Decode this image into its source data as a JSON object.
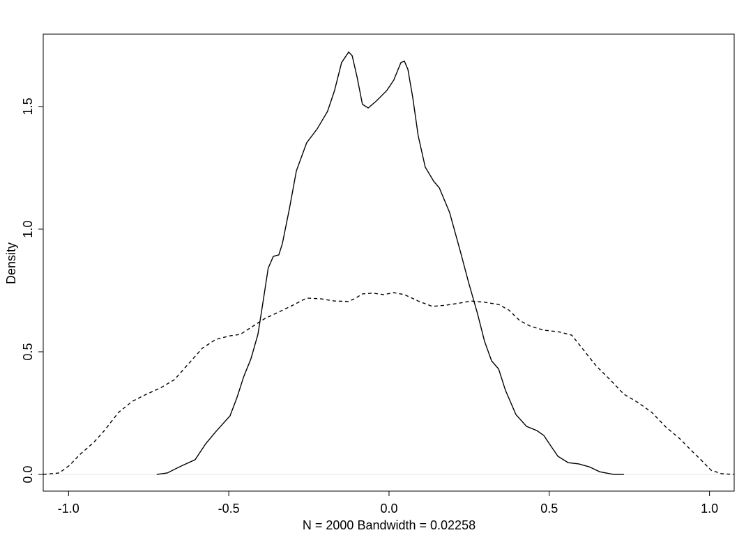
{
  "chart_data": {
    "type": "line",
    "xlabel": "N = 2000   Bandwidth = 0.02258",
    "ylabel": "Density",
    "xlim": [
      -1.079,
      1.077
    ],
    "ylim": [
      -0.068,
      1.795
    ],
    "xticks": [
      {
        "value": -1,
        "label": "-1.0"
      },
      -0.5,
      {
        "value": 0,
        "label": "0.0"
      },
      0.5,
      {
        "value": 1,
        "label": "1.0"
      }
    ],
    "yticks": [
      {
        "value": 0,
        "label": "0.0"
      },
      0.5,
      {
        "value": 1,
        "label": "1.0"
      },
      1.5
    ],
    "grid": false,
    "zero_line": true,
    "series": [
      {
        "color": "#000000",
        "dash": "solid",
        "x": [
          -0.725,
          -0.692,
          -0.649,
          -0.605,
          -0.572,
          -0.54,
          -0.496,
          -0.474,
          -0.453,
          -0.431,
          -0.409,
          -0.392,
          -0.377,
          -0.361,
          -0.344,
          -0.333,
          -0.311,
          -0.289,
          -0.257,
          -0.224,
          -0.192,
          -0.17,
          -0.148,
          -0.126,
          -0.115,
          -0.1,
          -0.083,
          -0.065,
          -0.039,
          -0.007,
          0.015,
          0.037,
          0.048,
          0.059,
          0.074,
          0.091,
          0.113,
          0.139,
          0.157,
          0.189,
          0.222,
          0.248,
          0.276,
          0.298,
          0.32,
          0.342,
          0.363,
          0.396,
          0.429,
          0.461,
          0.483,
          0.505,
          0.527,
          0.559,
          0.592,
          0.625,
          0.657,
          0.701,
          0.733
        ],
        "values": [
          0,
          0.006,
          0.034,
          0.06,
          0.125,
          0.175,
          0.239,
          0.315,
          0.4,
          0.471,
          0.571,
          0.713,
          0.841,
          0.889,
          0.895,
          0.94,
          1.082,
          1.238,
          1.352,
          1.409,
          1.48,
          1.565,
          1.679,
          1.722,
          1.707,
          1.622,
          1.509,
          1.494,
          1.523,
          1.565,
          1.608,
          1.679,
          1.685,
          1.651,
          1.537,
          1.381,
          1.253,
          1.196,
          1.168,
          1.068,
          0.912,
          0.784,
          0.656,
          0.543,
          0.463,
          0.43,
          0.344,
          0.244,
          0.196,
          0.179,
          0.159,
          0.116,
          0.074,
          0.048,
          0.043,
          0.031,
          0.011,
          0,
          0
        ]
      },
      {
        "color": "#000000",
        "dash": "dashed",
        "x": [
          -1.079,
          -1.029,
          -0.997,
          -0.964,
          -0.921,
          -0.888,
          -0.844,
          -0.801,
          -0.757,
          -0.714,
          -0.67,
          -0.627,
          -0.583,
          -0.54,
          -0.496,
          -0.464,
          -0.431,
          -0.387,
          -0.344,
          -0.3,
          -0.257,
          -0.213,
          -0.17,
          -0.126,
          -0.104,
          -0.083,
          -0.05,
          -0.017,
          0.015,
          0.048,
          0.091,
          0.135,
          0.178,
          0.222,
          0.255,
          0.298,
          0.342,
          0.374,
          0.407,
          0.44,
          0.483,
          0.527,
          0.57,
          0.603,
          0.646,
          0.69,
          0.733,
          0.777,
          0.82,
          0.864,
          0.908,
          0.94,
          0.973,
          1.005,
          1.038,
          1.077
        ],
        "values": [
          0,
          0.006,
          0.037,
          0.082,
          0.131,
          0.179,
          0.253,
          0.298,
          0.327,
          0.352,
          0.386,
          0.449,
          0.514,
          0.551,
          0.565,
          0.571,
          0.599,
          0.636,
          0.662,
          0.69,
          0.719,
          0.716,
          0.707,
          0.705,
          0.719,
          0.736,
          0.739,
          0.733,
          0.741,
          0.733,
          0.707,
          0.685,
          0.69,
          0.699,
          0.707,
          0.702,
          0.693,
          0.67,
          0.628,
          0.605,
          0.588,
          0.582,
          0.568,
          0.514,
          0.443,
          0.386,
          0.327,
          0.293,
          0.253,
          0.193,
          0.145,
          0.102,
          0.06,
          0.017,
          0.003,
          0
        ]
      }
    ]
  }
}
